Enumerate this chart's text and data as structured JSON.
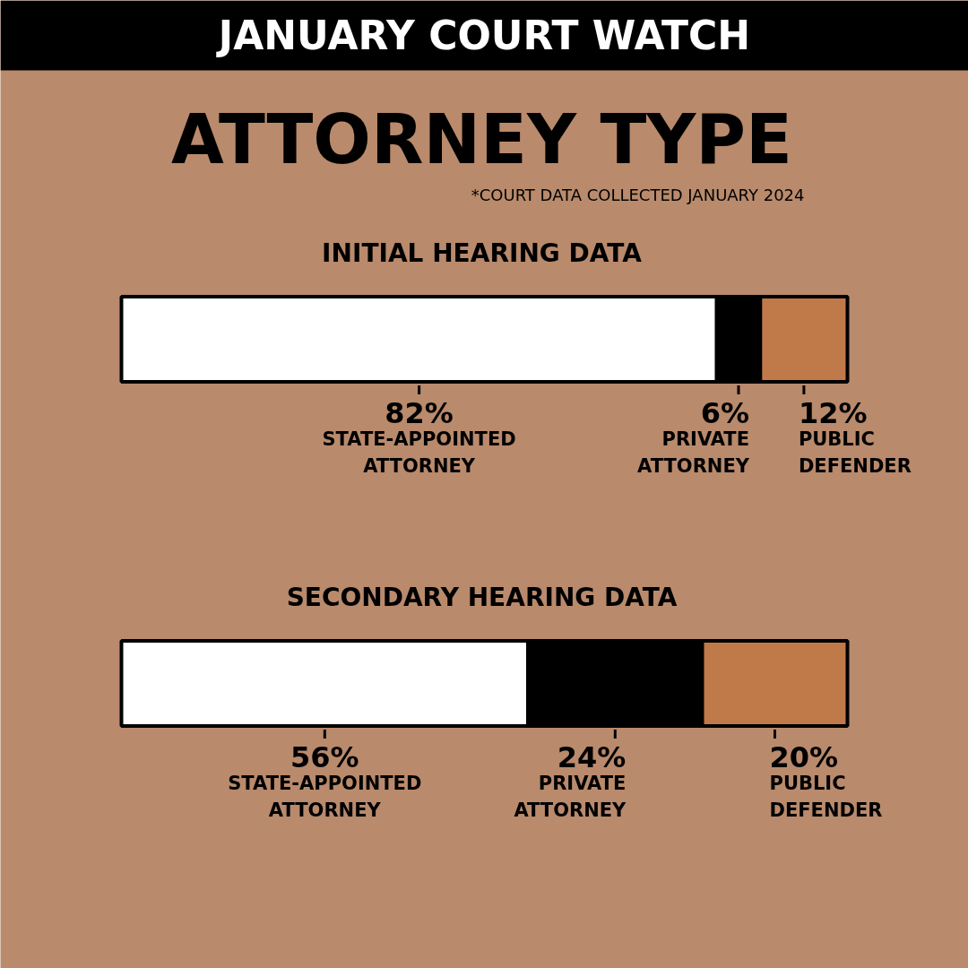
{
  "chart_data": {
    "type": "bar",
    "orientation": "horizontal",
    "stacked": true,
    "subtitle": "JANUARY COURT WATCH",
    "title": "ATTORNEY TYPE",
    "annotations": [
      "*COURT DATA COLLECTED JANUARY 2024"
    ],
    "categories": [
      "INITIAL HEARING DATA",
      "SECONDARY HEARING DATA"
    ],
    "series": [
      {
        "name": "STATE-APPOINTED ATTORNEY",
        "color": "#ffffff",
        "values": [
          82,
          56
        ],
        "value_labels": [
          "82%",
          "56%"
        ]
      },
      {
        "name": "PRIVATE ATTORNEY",
        "color": "#000000",
        "values": [
          6,
          24
        ],
        "value_labels": [
          "6%",
          "24%"
        ]
      },
      {
        "name": "PUBLIC DEFENDER",
        "color": "#c07a4a",
        "values": [
          12,
          20
        ],
        "value_labels": [
          "12%",
          "20%"
        ]
      }
    ],
    "xlim": [
      0,
      100
    ],
    "tick_labels": false,
    "grid": false
  }
}
